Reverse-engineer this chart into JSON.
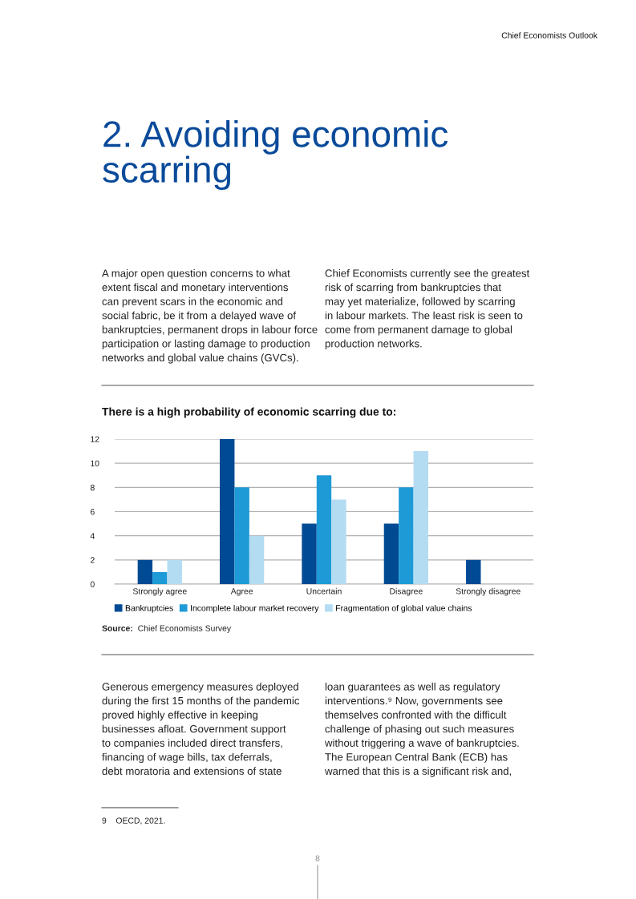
{
  "chart_data": {
    "type": "bar",
    "title": "There is a high probability of economic scarring due to:",
    "categories": [
      "Strongly agree",
      "Agree",
      "Uncertain",
      "Disagree",
      "Strongly disagree"
    ],
    "series": [
      {
        "name": "Bankruptcies",
        "color": "#004a93",
        "values": [
          2,
          12,
          5,
          5,
          2
        ]
      },
      {
        "name": "Incomplete labour market recovery",
        "color": "#1e9ad6",
        "values": [
          1,
          8,
          9,
          8,
          0
        ]
      },
      {
        "name": "Fragmentation of global value chains",
        "color": "#b3dcf3",
        "values": [
          2,
          4,
          7,
          11,
          0
        ]
      }
    ],
    "ylim": [
      0,
      12
    ],
    "yticks": [
      0,
      2,
      4,
      6,
      8,
      10,
      12
    ],
    "grid": "y",
    "legend": "bottom",
    "annotations": [
      "Chief Economists Outlook",
      "2. Avoiding economic\nscarring",
      "A major open question concerns to what\nextent fiscal and monetary interventions\ncan prevent scars in the economic and\nsocial fabric, be it from a delayed wave of\nbankruptcies, permanent drops in labour force\nparticipation or lasting damage to production\nnetworks and global value chains (GVCs).",
      "Chief Economists currently see the greatest\nrisk of scarring from bankruptcies that\nmay yet materialize, followed by scarring\nin labour markets. The least risk is seen to\ncome from permanent damage to global\nproduction networks.",
      "Source: Chief Economists Survey",
      "Generous emergency measures deployed\nduring the first 15 months of the pandemic\nproved highly effective in keeping\nbusinesses afloat. Government support\nto companies included direct transfers,\nfinancing of wage bills, tax deferrals,\ndebt moratoria and extensions of state",
      "loan guarantees as well as regulatory\ninterventions.⁹ Now, governments see\nthemselves confronted with the difficult\nchallenge of phasing out such measures\nwithout triggering a wave of bankruptcies.\nThe European Central Bank (ECB) has\nwarned that this is a significant risk and,",
      "9    OECD, 2021.",
      "8"
    ]
  }
}
